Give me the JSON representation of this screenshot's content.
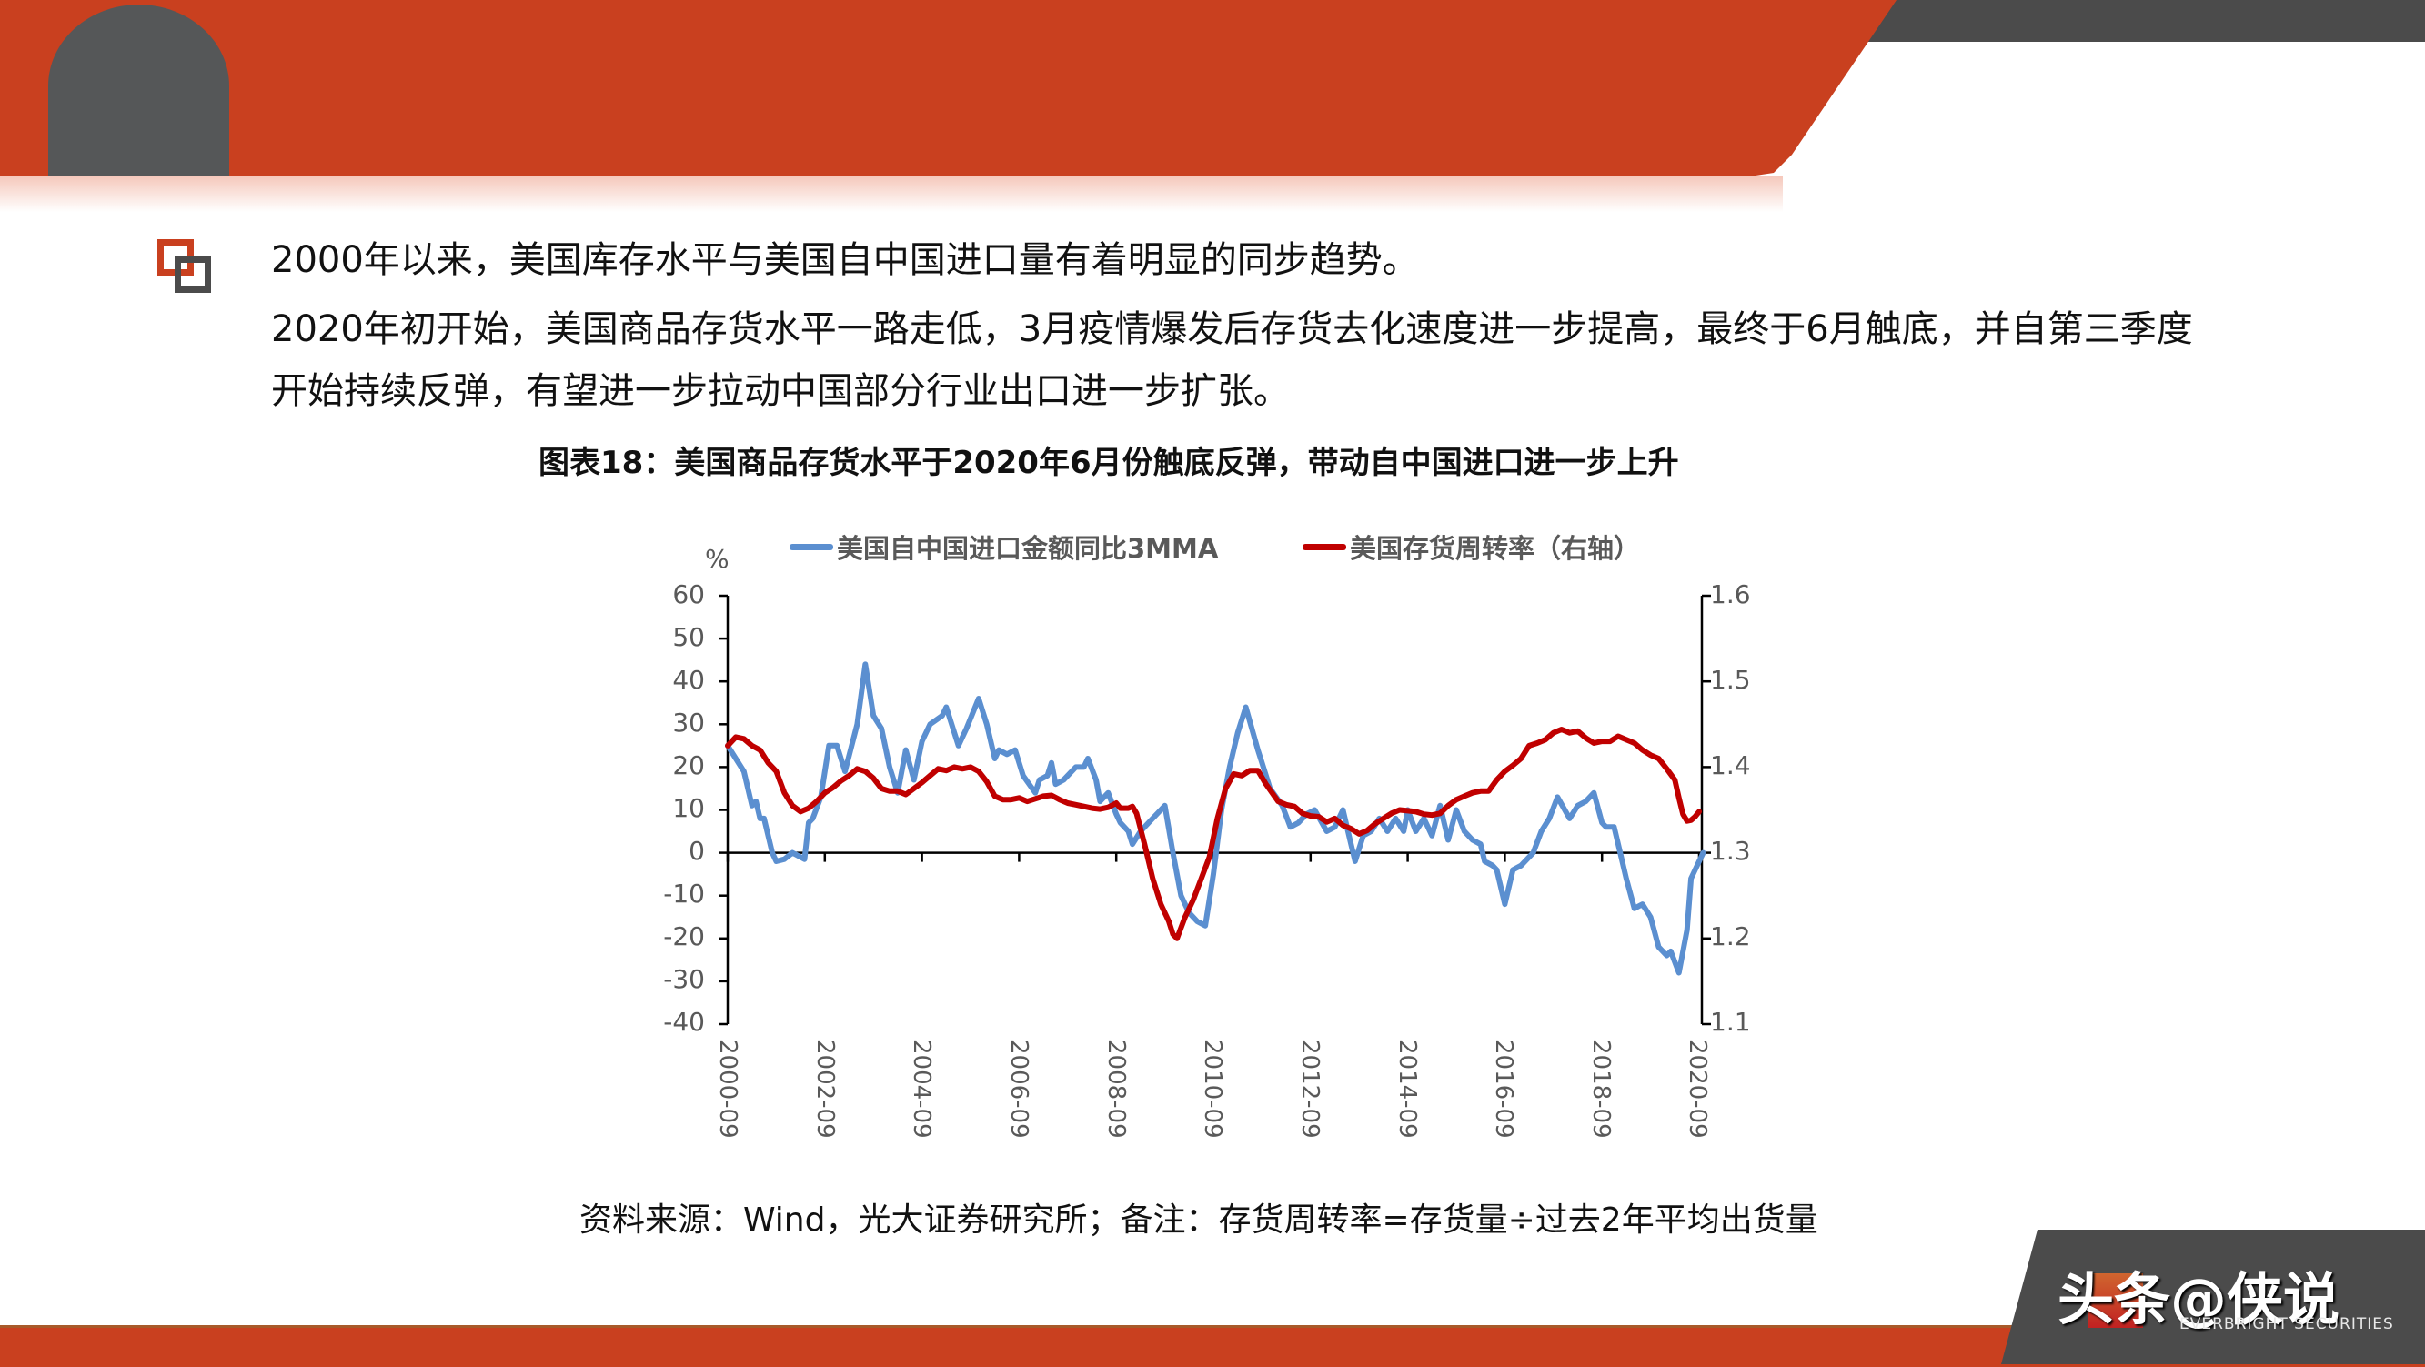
{
  "header": {
    "colors": {
      "accent": "#c9401f",
      "dark": "#4b4b4b"
    }
  },
  "body": {
    "bullet_icon": "overlapping-squares-icon",
    "paragraph_1": "2000年以来，美国库存水平与美国自中国进口量有着明显的同步趋势。",
    "paragraph_2": "2020年初开始，美国商品存货水平一路走低，3月疫情爆发后存货去化速度进一步提高，最终于6月触底，并自第三季度",
    "paragraph_3": "开始持续反弹，有望进一步拉动中国部分行业出口进一步扩张。",
    "figure_title": "图表18：美国商品存货水平于2020年6月份触底反弹，带动自中国进口进一步上升",
    "source_note": "资料来源：Wind，光大证券研究所；备注：存货周转率=存货量÷过去2年平均出货量"
  },
  "watermark": {
    "text": "头条@侠说",
    "sub": "EVERBRIGHT SECURITIES"
  },
  "chart_data": {
    "type": "line",
    "title": "图表18：美国商品存货水平于2020年6月份触底反弹，带动自中国进口进一步上升",
    "xlabel": "",
    "ylabel": "%",
    "ylabel_right": "",
    "x_tick_labels": [
      "2000-09",
      "2002-09",
      "2004-09",
      "2006-09",
      "2008-09",
      "2010-09",
      "2012-09",
      "2014-09",
      "2016-09",
      "2018-09",
      "2020-09"
    ],
    "x_range": [
      "2000-09",
      "2020-09"
    ],
    "ylim": [
      -40,
      60
    ],
    "y_ticks": [
      60,
      50,
      40,
      30,
      20,
      10,
      0,
      -10,
      -20,
      -30,
      -40
    ],
    "ylim_right": [
      1.1,
      1.6
    ],
    "y_ticks_right": [
      1.6,
      1.5,
      1.4,
      1.3,
      1.2,
      1.1
    ],
    "grid": false,
    "legend_position": "top",
    "series": [
      {
        "name": "美国自中国进口金额同比3MMA",
        "axis": "left",
        "color": "#5b8fd0",
        "points": [
          [
            "2000-09",
            25
          ],
          [
            "2000-11",
            22
          ],
          [
            "2001-01",
            19
          ],
          [
            "2001-03",
            11
          ],
          [
            "2001-04",
            12
          ],
          [
            "2001-05",
            8
          ],
          [
            "2001-06",
            8
          ],
          [
            "2001-08",
            0
          ],
          [
            "2001-09",
            -2
          ],
          [
            "2001-11",
            -1.5
          ],
          [
            "2002-01",
            0
          ],
          [
            "2002-03",
            -1
          ],
          [
            "2002-04",
            -1.5
          ],
          [
            "2002-05",
            7
          ],
          [
            "2002-06",
            8
          ],
          [
            "2002-08",
            13
          ],
          [
            "2002-10",
            25
          ],
          [
            "2002-12",
            25
          ],
          [
            "2003-02",
            19
          ],
          [
            "2003-05",
            30
          ],
          [
            "2003-07",
            44
          ],
          [
            "2003-09",
            32
          ],
          [
            "2003-11",
            29
          ],
          [
            "2004-01",
            20
          ],
          [
            "2004-03",
            14
          ],
          [
            "2004-05",
            24
          ],
          [
            "2004-07",
            17
          ],
          [
            "2004-09",
            26
          ],
          [
            "2004-11",
            30
          ],
          [
            "2005-02",
            32
          ],
          [
            "2005-03",
            34
          ],
          [
            "2005-06",
            25
          ],
          [
            "2005-08",
            29
          ],
          [
            "2005-11",
            36
          ],
          [
            "2006-01",
            30
          ],
          [
            "2006-03",
            22
          ],
          [
            "2006-04",
            24
          ],
          [
            "2006-06",
            23
          ],
          [
            "2006-08",
            24
          ],
          [
            "2006-10",
            18
          ],
          [
            "2007-01",
            14
          ],
          [
            "2007-02",
            17
          ],
          [
            "2007-04",
            18
          ],
          [
            "2007-05",
            21
          ],
          [
            "2007-06",
            16
          ],
          [
            "2007-08",
            17
          ],
          [
            "2007-11",
            20
          ],
          [
            "2008-01",
            20
          ],
          [
            "2008-02",
            22
          ],
          [
            "2008-04",
            17
          ],
          [
            "2008-05",
            12
          ],
          [
            "2008-07",
            14
          ],
          [
            "2008-09",
            9
          ],
          [
            "2008-10",
            7
          ],
          [
            "2008-12",
            5
          ],
          [
            "2009-01",
            2
          ],
          [
            "2009-03",
            5
          ],
          [
            "2009-05",
            7
          ],
          [
            "2009-07",
            9
          ],
          [
            "2009-09",
            11
          ],
          [
            "2009-11",
            0
          ],
          [
            "2010-01",
            -10
          ],
          [
            "2010-03",
            -14
          ],
          [
            "2010-05",
            -16
          ],
          [
            "2010-07",
            -17
          ],
          [
            "2010-09",
            -5
          ],
          [
            "2010-11",
            10
          ],
          [
            "2011-01",
            20
          ],
          [
            "2011-03",
            28
          ],
          [
            "2011-05",
            34
          ],
          [
            "2011-08",
            24
          ],
          [
            "2011-09",
            21
          ],
          [
            "2011-11",
            15
          ],
          [
            "2012-02",
            11
          ],
          [
            "2012-04",
            6
          ],
          [
            "2012-06",
            7
          ],
          [
            "2012-08",
            9
          ],
          [
            "2012-10",
            10
          ],
          [
            "2013-01",
            5
          ],
          [
            "2013-03",
            6
          ],
          [
            "2013-05",
            10
          ],
          [
            "2013-07",
            2
          ],
          [
            "2013-08",
            -2
          ],
          [
            "2013-10",
            4
          ],
          [
            "2013-12",
            5
          ],
          [
            "2014-02",
            8
          ],
          [
            "2014-04",
            5
          ],
          [
            "2014-06",
            8
          ],
          [
            "2014-08",
            5
          ],
          [
            "2014-09",
            10
          ],
          [
            "2014-11",
            5
          ],
          [
            "2015-01",
            8
          ],
          [
            "2015-03",
            4
          ],
          [
            "2015-05",
            11
          ],
          [
            "2015-07",
            3
          ],
          [
            "2015-09",
            10
          ],
          [
            "2015-11",
            5
          ],
          [
            "2016-01",
            3
          ],
          [
            "2016-03",
            2
          ],
          [
            "2016-04",
            -2
          ],
          [
            "2016-06",
            -3
          ],
          [
            "2016-07",
            -4
          ],
          [
            "2016-09",
            -12
          ],
          [
            "2016-11",
            -4
          ],
          [
            "2017-01",
            -3
          ],
          [
            "2017-04",
            0
          ],
          [
            "2017-06",
            5
          ],
          [
            "2017-08",
            8
          ],
          [
            "2017-10",
            13
          ],
          [
            "2018-01",
            8
          ],
          [
            "2018-03",
            11
          ],
          [
            "2018-05",
            12
          ],
          [
            "2018-07",
            14
          ],
          [
            "2018-09",
            7
          ],
          [
            "2018-10",
            6
          ],
          [
            "2018-12",
            6
          ],
          [
            "2019-01",
            2
          ],
          [
            "2019-03",
            -6
          ],
          [
            "2019-05",
            -13
          ],
          [
            "2019-07",
            -12
          ],
          [
            "2019-09",
            -15
          ],
          [
            "2019-11",
            -22
          ],
          [
            "2020-01",
            -24
          ],
          [
            "2020-02",
            -23
          ],
          [
            "2020-04",
            -28
          ],
          [
            "2020-06",
            -18
          ],
          [
            "2020-07",
            -6
          ],
          [
            "2020-09",
            -2
          ],
          [
            "2020-10",
            0
          ]
        ]
      },
      {
        "name": "美国存货周转率（右轴）",
        "axis": "right",
        "color": "#c00000",
        "points": [
          [
            "2000-09",
            1.425
          ],
          [
            "2000-11",
            1.435
          ],
          [
            "2001-01",
            1.433
          ],
          [
            "2001-03",
            1.425
          ],
          [
            "2001-05",
            1.42
          ],
          [
            "2001-07",
            1.405
          ],
          [
            "2001-09",
            1.395
          ],
          [
            "2001-11",
            1.37
          ],
          [
            "2002-01",
            1.355
          ],
          [
            "2002-03",
            1.348
          ],
          [
            "2002-05",
            1.352
          ],
          [
            "2002-07",
            1.36
          ],
          [
            "2002-09",
            1.37
          ],
          [
            "2002-11",
            1.376
          ],
          [
            "2003-01",
            1.384
          ],
          [
            "2003-03",
            1.39
          ],
          [
            "2003-05",
            1.398
          ],
          [
            "2003-07",
            1.395
          ],
          [
            "2003-09",
            1.387
          ],
          [
            "2003-11",
            1.375
          ],
          [
            "2004-01",
            1.372
          ],
          [
            "2004-03",
            1.372
          ],
          [
            "2004-05",
            1.368
          ],
          [
            "2004-07",
            1.375
          ],
          [
            "2004-09",
            1.382
          ],
          [
            "2004-11",
            1.39
          ],
          [
            "2005-01",
            1.398
          ],
          [
            "2005-03",
            1.396
          ],
          [
            "2005-05",
            1.4
          ],
          [
            "2005-07",
            1.398
          ],
          [
            "2005-09",
            1.4
          ],
          [
            "2005-11",
            1.395
          ],
          [
            "2006-01",
            1.383
          ],
          [
            "2006-03",
            1.366
          ],
          [
            "2006-05",
            1.362
          ],
          [
            "2006-07",
            1.362
          ],
          [
            "2006-09",
            1.364
          ],
          [
            "2006-11",
            1.36
          ],
          [
            "2007-01",
            1.363
          ],
          [
            "2007-03",
            1.366
          ],
          [
            "2007-05",
            1.367
          ],
          [
            "2007-07",
            1.362
          ],
          [
            "2007-09",
            1.358
          ],
          [
            "2007-11",
            1.356
          ],
          [
            "2008-01",
            1.354
          ],
          [
            "2008-03",
            1.352
          ],
          [
            "2008-05",
            1.351
          ],
          [
            "2008-07",
            1.353
          ],
          [
            "2008-09",
            1.358
          ],
          [
            "2008-10",
            1.352
          ],
          [
            "2008-12",
            1.352
          ],
          [
            "2009-01",
            1.354
          ],
          [
            "2009-02",
            1.346
          ],
          [
            "2009-04",
            1.31
          ],
          [
            "2009-06",
            1.27
          ],
          [
            "2009-08",
            1.24
          ],
          [
            "2009-10",
            1.22
          ],
          [
            "2009-11",
            1.205
          ],
          [
            "2009-12",
            1.2
          ],
          [
            "2010-02",
            1.225
          ],
          [
            "2010-04",
            1.245
          ],
          [
            "2010-06",
            1.27
          ],
          [
            "2010-08",
            1.295
          ],
          [
            "2010-10",
            1.34
          ],
          [
            "2010-12",
            1.375
          ],
          [
            "2011-02",
            1.392
          ],
          [
            "2011-04",
            1.39
          ],
          [
            "2011-06",
            1.396
          ],
          [
            "2011-08",
            1.396
          ],
          [
            "2011-10",
            1.38
          ],
          [
            "2012-01",
            1.36
          ],
          [
            "2012-03",
            1.356
          ],
          [
            "2012-05",
            1.354
          ],
          [
            "2012-07",
            1.346
          ],
          [
            "2012-09",
            1.343
          ],
          [
            "2012-11",
            1.342
          ],
          [
            "2013-01",
            1.336
          ],
          [
            "2013-03",
            1.34
          ],
          [
            "2013-05",
            1.332
          ],
          [
            "2013-07",
            1.328
          ],
          [
            "2013-09",
            1.322
          ],
          [
            "2013-11",
            1.326
          ],
          [
            "2014-01",
            1.334
          ],
          [
            "2014-03",
            1.34
          ],
          [
            "2014-05",
            1.346
          ],
          [
            "2014-07",
            1.35
          ],
          [
            "2014-09",
            1.349
          ],
          [
            "2014-11",
            1.348
          ],
          [
            "2015-01",
            1.345
          ],
          [
            "2015-03",
            1.344
          ],
          [
            "2015-05",
            1.346
          ],
          [
            "2015-07",
            1.355
          ],
          [
            "2015-09",
            1.362
          ],
          [
            "2015-11",
            1.366
          ],
          [
            "2016-01",
            1.37
          ],
          [
            "2016-03",
            1.372
          ],
          [
            "2016-05",
            1.372
          ],
          [
            "2016-07",
            1.385
          ],
          [
            "2016-09",
            1.395
          ],
          [
            "2016-11",
            1.402
          ],
          [
            "2017-01",
            1.41
          ],
          [
            "2017-03",
            1.425
          ],
          [
            "2017-05",
            1.428
          ],
          [
            "2017-07",
            1.432
          ],
          [
            "2017-09",
            1.44
          ],
          [
            "2017-11",
            1.444
          ],
          [
            "2018-01",
            1.44
          ],
          [
            "2018-03",
            1.442
          ],
          [
            "2018-05",
            1.434
          ],
          [
            "2018-07",
            1.428
          ],
          [
            "2018-09",
            1.43
          ],
          [
            "2018-11",
            1.43
          ],
          [
            "2019-01",
            1.436
          ],
          [
            "2019-03",
            1.432
          ],
          [
            "2019-05",
            1.428
          ],
          [
            "2019-07",
            1.42
          ],
          [
            "2019-09",
            1.414
          ],
          [
            "2019-11",
            1.41
          ],
          [
            "2020-01",
            1.398
          ],
          [
            "2020-03",
            1.385
          ],
          [
            "2020-04",
            1.364
          ],
          [
            "2020-05",
            1.345
          ],
          [
            "2020-06",
            1.337
          ],
          [
            "2020-07",
            1.338
          ],
          [
            "2020-08",
            1.342
          ],
          [
            "2020-09",
            1.348
          ]
        ]
      }
    ]
  },
  "chart_labels": {
    "unit_left": "%",
    "legend_1": "美国自中国进口金额同比3MMA",
    "legend_2": "美国存货周转率（右轴）",
    "yl": [
      "60",
      "50",
      "40",
      "30",
      "20",
      "10",
      "0",
      "-10",
      "-20",
      "-30",
      "-40"
    ],
    "yr": [
      "1.6",
      "1.5",
      "1.4",
      "1.3",
      "1.2",
      "1.1"
    ],
    "x": [
      "2000-09",
      "2002-09",
      "2004-09",
      "2006-09",
      "2008-09",
      "2010-09",
      "2012-09",
      "2014-09",
      "2016-09",
      "2018-09",
      "2020-09"
    ]
  }
}
